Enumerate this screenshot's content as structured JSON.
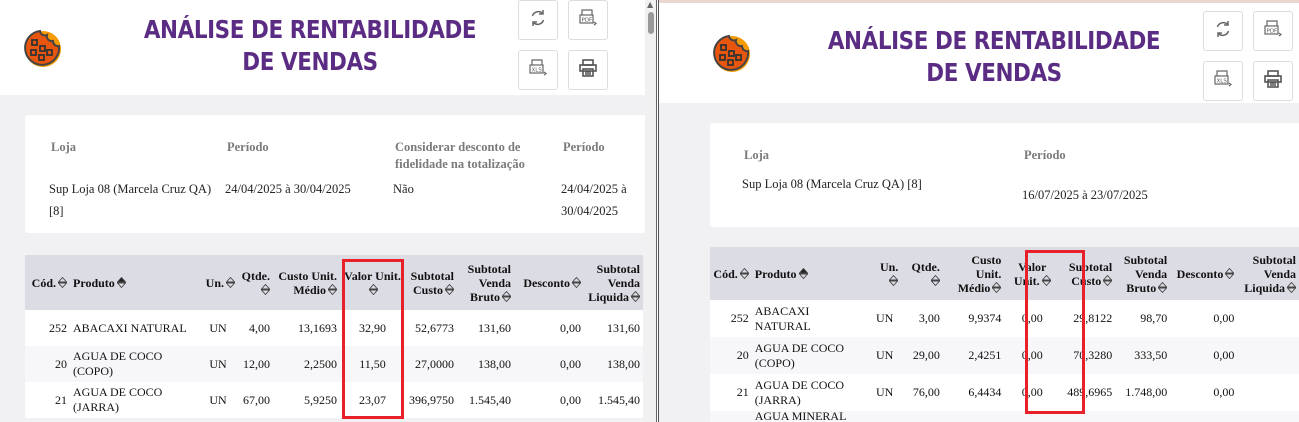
{
  "colors": {
    "title": "#5b2c83",
    "highlight": "#e8202a",
    "table_header_bg": "#dcdce4"
  },
  "icons": [
    "cookie-logo-icon",
    "refresh-icon",
    "pdf-export-icon",
    "xls-export-icon",
    "print-icon",
    "sort-icon"
  ],
  "columns": [
    "Cód.",
    "Produto",
    "Un.",
    "Qtde.",
    "Custo Unit. Médio",
    "Valor Unit.",
    "Subtotal Custo",
    "Subtotal Venda Bruto",
    "Desconto",
    "Subtotal Venda Liquida"
  ],
  "left": {
    "title": "ANÁLISE DE RENTABILIDADE DE VENDAS",
    "filters": [
      {
        "label": "Loja",
        "value": "Sup Loja 08 (Marcela Cruz QA) [8]"
      },
      {
        "label": "Período",
        "value": "24/04/2025 à 30/04/2025"
      },
      {
        "label": "Considerar desconto de fidelidade na totalização",
        "value": "Não"
      },
      {
        "label": "Período",
        "value": "24/04/2025 à 30/04/2025"
      }
    ],
    "rows": [
      [
        "252",
        "ABACAXI NATURAL",
        "UN",
        "4,00",
        "13,1693",
        "32,90",
        "52,6773",
        "131,60",
        "0,00",
        "131,60"
      ],
      [
        "20",
        "AGUA DE COCO (COPO)",
        "UN",
        "12,00",
        "2,2500",
        "11,50",
        "27,0000",
        "138,00",
        "0,00",
        "138,00"
      ],
      [
        "21",
        "AGUA DE COCO (JARRA)",
        "UN",
        "67,00",
        "5,9250",
        "23,07",
        "396,9750",
        "1.545,40",
        "0,00",
        "1.545,40"
      ]
    ]
  },
  "right": {
    "title": "ANÁLISE DE RENTABILIDADE DE VENDAS",
    "filters": [
      {
        "label": "Loja",
        "value": "Sup Loja 08 (Marcela Cruz QA) [8]"
      },
      {
        "label": "Período",
        "value": "16/07/2025 à 23/07/2025"
      }
    ],
    "rows": [
      [
        "252",
        "ABACAXI NATURAL",
        "UN",
        "3,00",
        "9,9374",
        "0,00",
        "29,8122",
        "98,70",
        "0,00",
        ""
      ],
      [
        "20",
        "AGUA DE COCO (COPO)",
        "UN",
        "29,00",
        "2,4251",
        "0,00",
        "70,3280",
        "333,50",
        "0,00",
        ""
      ],
      [
        "21",
        "AGUA DE COCO (JARRA)",
        "UN",
        "76,00",
        "6,4434",
        "0,00",
        "489,6965",
        "1.748,00",
        "0,00",
        ""
      ],
      [
        "",
        "AGUA MINERAL",
        "",
        "",
        "",
        "",
        "",
        "",
        "",
        ""
      ]
    ]
  }
}
